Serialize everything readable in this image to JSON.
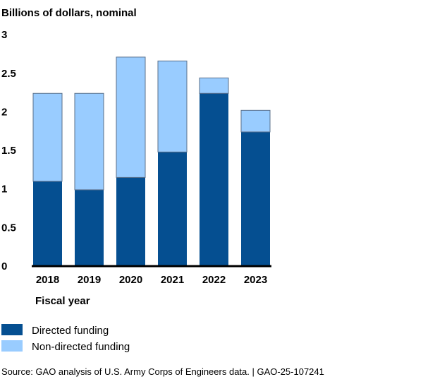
{
  "chart_data": {
    "type": "bar",
    "stacked": true,
    "ylabel": "Billions of dollars, nominal",
    "xlabel": "Fiscal year",
    "categories": [
      "2018",
      "2019",
      "2020",
      "2021",
      "2022",
      "2023"
    ],
    "ylim": [
      0,
      3
    ],
    "yticks": [
      "0",
      "0.5",
      "1",
      "1.5",
      "2",
      "2.5",
      "3"
    ],
    "grid": false,
    "legend_position": "bottom-left",
    "series": [
      {
        "name": "Directed funding",
        "color": "#054f91",
        "values": [
          1.09,
          0.98,
          1.14,
          1.47,
          2.23,
          1.73
        ]
      },
      {
        "name": "Non-directed funding",
        "color": "#99ccff",
        "values": [
          1.14,
          1.25,
          1.56,
          1.18,
          0.2,
          0.28
        ]
      }
    ],
    "source": "Source: GAO analysis of U.S. Army Corps of Engineers data.  |  GAO-25-107241"
  }
}
